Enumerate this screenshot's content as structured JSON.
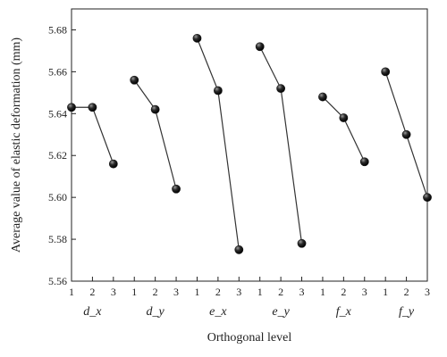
{
  "chart_data": {
    "type": "line",
    "xlabel": "Orthogonal level",
    "ylabel": "Average value of elastic deformation (mm)",
    "ylim": [
      5.56,
      5.69
    ],
    "yticks": [
      "5.56",
      "5.58",
      "5.60",
      "5.62",
      "5.64",
      "5.66",
      "5.68"
    ],
    "levels": [
      "1",
      "2",
      "3"
    ],
    "marker_color": "#1a1a1a",
    "line_color": "#333333",
    "grid": false,
    "series": [
      {
        "name": "d_x",
        "values": [
          5.643,
          5.643,
          5.616
        ]
      },
      {
        "name": "d_y",
        "values": [
          5.656,
          5.642,
          5.604
        ]
      },
      {
        "name": "e_x",
        "values": [
          5.676,
          5.651,
          5.575
        ]
      },
      {
        "name": "e_y",
        "values": [
          5.672,
          5.652,
          5.578
        ]
      },
      {
        "name": "f_x",
        "values": [
          5.648,
          5.638,
          5.617
        ]
      },
      {
        "name": "f_y",
        "values": [
          5.66,
          5.63,
          5.6
        ]
      }
    ]
  }
}
